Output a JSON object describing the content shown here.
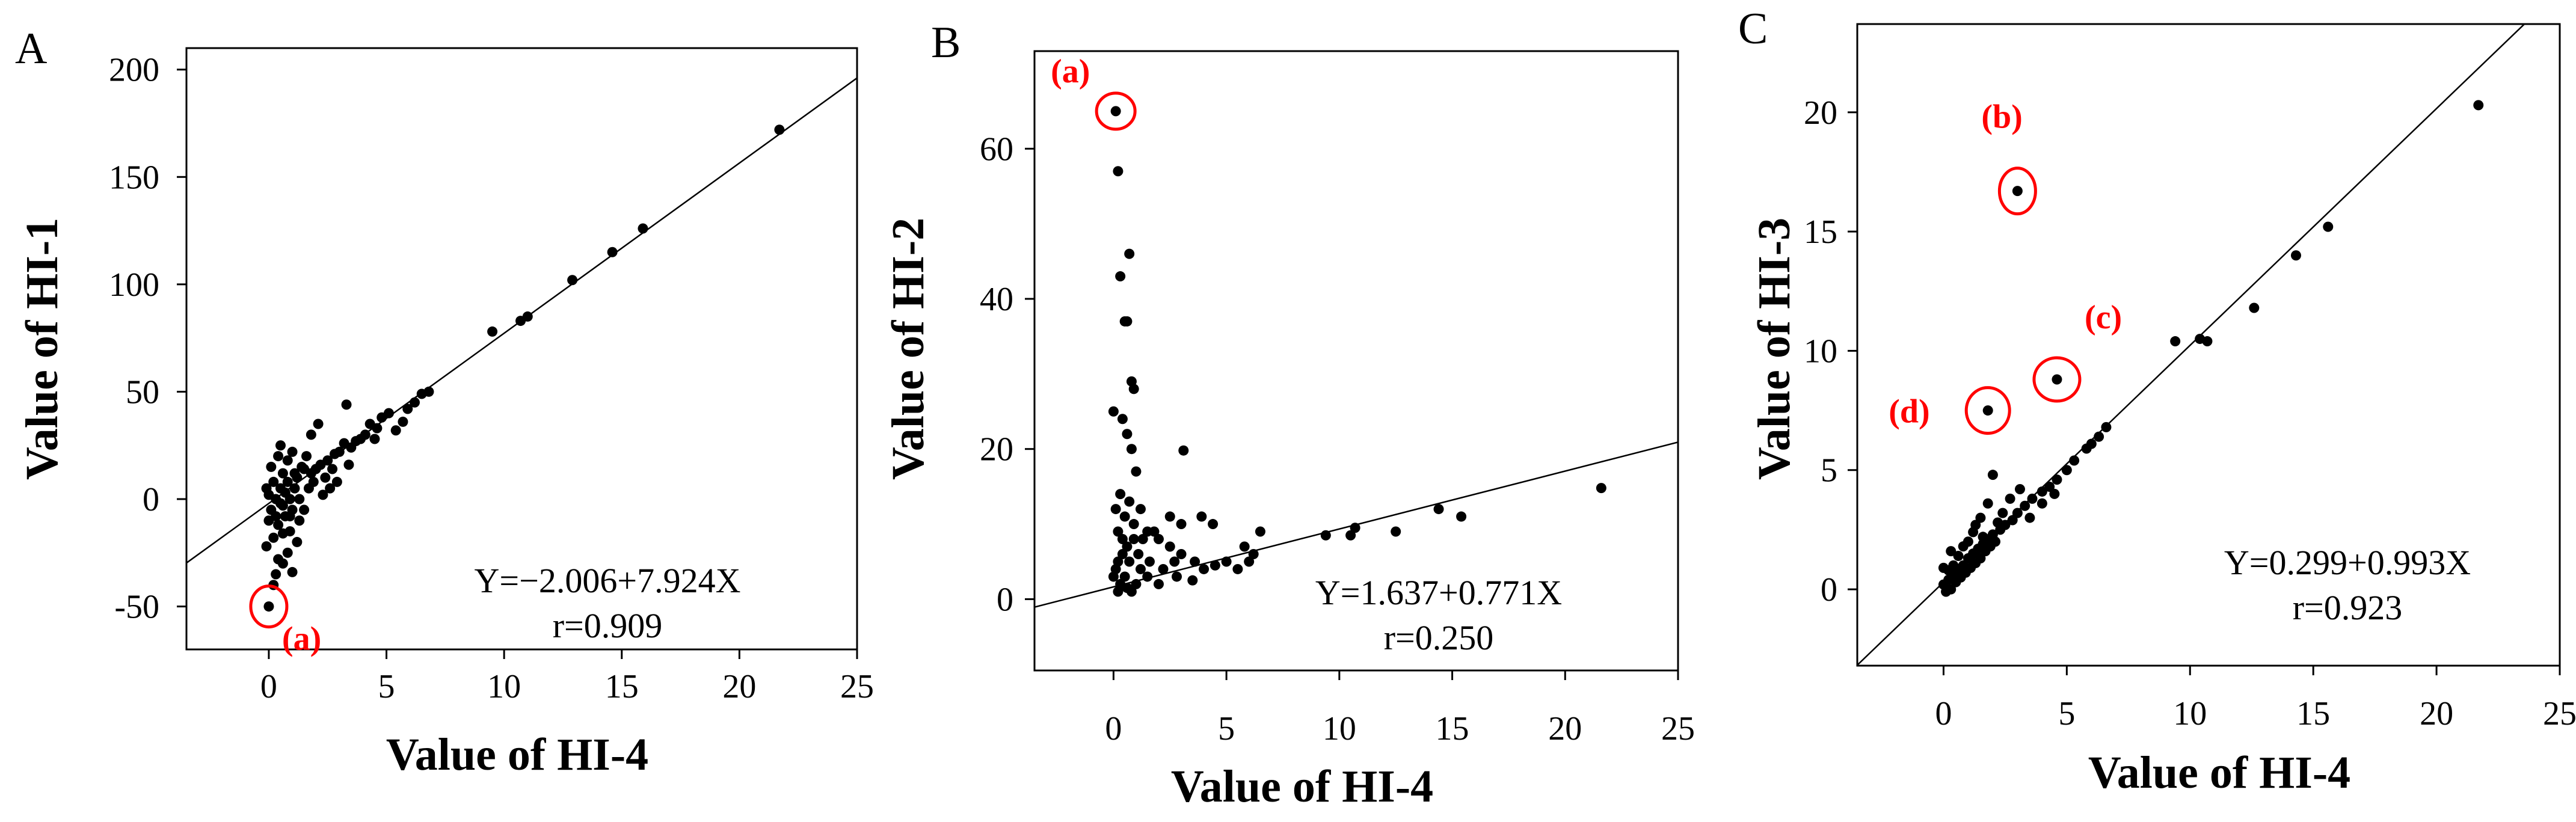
{
  "chart_data": [
    {
      "panel": "A",
      "type": "scatter",
      "xlabel": "Value of HI-4",
      "ylabel": "Value of HI-1",
      "xticks": [
        0,
        5,
        10,
        15,
        20,
        25
      ],
      "yticks": [
        -50,
        0,
        50,
        100,
        150,
        200
      ],
      "xlim": [
        -3.5,
        25
      ],
      "ylim": [
        -70,
        210
      ],
      "regression": {
        "intercept": -2.006,
        "slope": 7.924
      },
      "equation": "Y=−2.006+7.924X",
      "r_text": "r=0.909",
      "points": [
        [
          21.7,
          172
        ],
        [
          15.9,
          126
        ],
        [
          14.6,
          115
        ],
        [
          12.9,
          102
        ],
        [
          11.0,
          85
        ],
        [
          10.7,
          83
        ],
        [
          9.5,
          78
        ],
        [
          6.8,
          50
        ],
        [
          6.5,
          49
        ],
        [
          6.2,
          45
        ],
        [
          5.9,
          42
        ],
        [
          5.7,
          36
        ],
        [
          5.4,
          32
        ],
        [
          5.1,
          40
        ],
        [
          4.8,
          38
        ],
        [
          4.6,
          33
        ],
        [
          4.3,
          35
        ],
        [
          4.1,
          30
        ],
        [
          3.9,
          28
        ],
        [
          3.7,
          27
        ],
        [
          3.5,
          24
        ],
        [
          3.3,
          44
        ],
        [
          3.2,
          26
        ],
        [
          3.0,
          22
        ],
        [
          2.9,
          8
        ],
        [
          2.8,
          21
        ],
        [
          2.6,
          5
        ],
        [
          2.5,
          18
        ],
        [
          2.4,
          10
        ],
        [
          2.2,
          16
        ],
        [
          2.1,
          35
        ],
        [
          2.0,
          14
        ],
        [
          1.9,
          8
        ],
        [
          1.8,
          30
        ],
        [
          1.7,
          5
        ],
        [
          1.6,
          20
        ],
        [
          1.5,
          -5
        ],
        [
          1.4,
          15
        ],
        [
          1.3,
          -10
        ],
        [
          1.2,
          10
        ],
        [
          1.2,
          -20
        ],
        [
          1.1,
          5
        ],
        [
          1.0,
          22
        ],
        [
          1.0,
          -5
        ],
        [
          0.9,
          0
        ],
        [
          0.9,
          -15
        ],
        [
          0.8,
          8
        ],
        [
          0.8,
          -25
        ],
        [
          0.7,
          3
        ],
        [
          0.7,
          -8
        ],
        [
          0.6,
          12
        ],
        [
          0.6,
          -30
        ],
        [
          0.5,
          -2
        ],
        [
          0.5,
          5
        ],
        [
          0.4,
          20
        ],
        [
          0.4,
          -12
        ],
        [
          0.3,
          0
        ],
        [
          0.3,
          -35
        ],
        [
          0.2,
          8
        ],
        [
          0.2,
          -18
        ],
        [
          0.1,
          -5
        ],
        [
          0.1,
          15
        ],
        [
          0.0,
          -10
        ],
        [
          0.0,
          2
        ],
        [
          -0.1,
          -22
        ],
        [
          -0.1,
          5
        ],
        [
          0.2,
          -40
        ],
        [
          0.4,
          -28
        ],
        [
          0.6,
          -16
        ],
        [
          1.0,
          -34
        ],
        [
          1.5,
          14
        ],
        [
          2.3,
          2
        ],
        [
          0.5,
          25
        ],
        [
          0.8,
          18
        ],
        [
          1.1,
          12
        ],
        [
          0.3,
          -8
        ],
        [
          0.6,
          -3
        ],
        [
          0.9,
          -8
        ],
        [
          1.3,
          0
        ],
        [
          1.8,
          12
        ],
        [
          2.7,
          14
        ],
        [
          3.4,
          16
        ],
        [
          4.5,
          28
        ],
        [
          0.0,
          -50
        ]
      ],
      "annotations": [
        {
          "label": "(a)",
          "x": 0.0,
          "y": -50
        }
      ]
    },
    {
      "panel": "B",
      "type": "scatter",
      "xlabel": "Value of HI-4",
      "ylabel": "Value of HI-2",
      "xticks": [
        0,
        5,
        10,
        15,
        20,
        25
      ],
      "yticks": [
        0,
        20,
        40,
        60
      ],
      "xlim": [
        -3.5,
        25
      ],
      "ylim": [
        -9.5,
        73
      ],
      "regression": {
        "intercept": 1.637,
        "slope": 0.771
      },
      "equation": "Y=1.637+0.771X",
      "r_text": "r=0.250",
      "points": [
        [
          0.1,
          65
        ],
        [
          0.2,
          57
        ],
        [
          0.7,
          46
        ],
        [
          0.3,
          43
        ],
        [
          0.5,
          37
        ],
        [
          0.6,
          37
        ],
        [
          0.8,
          29
        ],
        [
          0.9,
          28
        ],
        [
          0.0,
          25
        ],
        [
          0.4,
          24
        ],
        [
          0.6,
          22
        ],
        [
          0.8,
          20
        ],
        [
          3.1,
          19.8
        ],
        [
          1.0,
          17
        ],
        [
          0.3,
          14
        ],
        [
          0.7,
          13
        ],
        [
          1.2,
          12
        ],
        [
          0.5,
          11
        ],
        [
          0.9,
          10
        ],
        [
          1.5,
          9
        ],
        [
          2.0,
          8
        ],
        [
          2.5,
          7
        ],
        [
          3.0,
          6
        ],
        [
          3.6,
          5
        ],
        [
          4.0,
          4
        ],
        [
          4.5,
          4.5
        ],
        [
          5.0,
          5
        ],
        [
          5.5,
          4
        ],
        [
          6.0,
          5
        ],
        [
          6.5,
          9
        ],
        [
          6.2,
          6
        ],
        [
          5.8,
          7
        ],
        [
          3.9,
          11
        ],
        [
          4.4,
          10
        ],
        [
          3.0,
          10
        ],
        [
          2.5,
          11
        ],
        [
          1.8,
          9
        ],
        [
          1.3,
          8
        ],
        [
          0.9,
          8
        ],
        [
          0.6,
          7
        ],
        [
          0.4,
          6
        ],
        [
          0.2,
          5
        ],
        [
          0.1,
          4
        ],
        [
          0.0,
          3
        ],
        [
          0.3,
          2
        ],
        [
          0.6,
          1.5
        ],
        [
          1.0,
          2
        ],
        [
          1.5,
          3
        ],
        [
          2.0,
          2
        ],
        [
          2.8,
          3
        ],
        [
          3.5,
          2.5
        ],
        [
          0.2,
          1
        ],
        [
          0.8,
          1
        ],
        [
          1.2,
          4
        ],
        [
          0.5,
          3
        ],
        [
          0.7,
          5
        ],
        [
          1.1,
          6
        ],
        [
          1.6,
          5
        ],
        [
          2.2,
          4
        ],
        [
          2.7,
          5
        ],
        [
          0.4,
          8
        ],
        [
          0.2,
          9
        ],
        [
          0.1,
          12
        ],
        [
          9.4,
          8.5
        ],
        [
          10.5,
          8.5
        ],
        [
          10.7,
          9.5
        ],
        [
          12.5,
          9
        ],
        [
          14.4,
          12
        ],
        [
          15.4,
          11
        ],
        [
          21.6,
          14.8
        ]
      ],
      "annotations": [
        {
          "label": "(a)",
          "x": 0.1,
          "y": 65
        }
      ]
    },
    {
      "panel": "C",
      "type": "scatter",
      "xlabel": "Value of HI-4",
      "ylabel": "Value of HI-3",
      "xticks": [
        0,
        5,
        10,
        15,
        20,
        25
      ],
      "yticks": [
        0,
        5,
        10,
        15,
        20
      ],
      "xlim": [
        -3.5,
        25
      ],
      "ylim": [
        -3.2,
        23.7
      ],
      "regression": {
        "intercept": 0.299,
        "slope": 0.993
      },
      "equation": "Y=0.299+0.993X",
      "r_text": "r=0.923",
      "points": [
        [
          21.7,
          20.3
        ],
        [
          15.6,
          15.2
        ],
        [
          14.3,
          14.0
        ],
        [
          12.6,
          11.8
        ],
        [
          10.7,
          10.4
        ],
        [
          10.4,
          10.5
        ],
        [
          9.4,
          10.4
        ],
        [
          6.6,
          6.8
        ],
        [
          6.3,
          6.4
        ],
        [
          6.0,
          6.1
        ],
        [
          5.8,
          5.9
        ],
        [
          5.3,
          5.4
        ],
        [
          5.0,
          5.0
        ],
        [
          4.6,
          4.6
        ],
        [
          4.3,
          4.3
        ],
        [
          4.0,
          4.1
        ],
        [
          3.6,
          3.8
        ],
        [
          3.3,
          3.5
        ],
        [
          3.0,
          3.2
        ],
        [
          2.8,
          2.9
        ],
        [
          2.5,
          2.7
        ],
        [
          2.3,
          2.5
        ],
        [
          2.0,
          2.3
        ],
        [
          1.8,
          2.1
        ],
        [
          1.6,
          1.9
        ],
        [
          1.4,
          1.7
        ],
        [
          1.2,
          1.5
        ],
        [
          1.0,
          1.3
        ],
        [
          0.8,
          1.0
        ],
        [
          0.6,
          0.8
        ],
        [
          0.4,
          0.6
        ],
        [
          0.2,
          0.4
        ],
        [
          0.0,
          0.2
        ],
        [
          0.1,
          -0.1
        ],
        [
          0.3,
          0.0
        ],
        [
          0.5,
          0.3
        ],
        [
          0.7,
          0.5
        ],
        [
          0.9,
          0.7
        ],
        [
          1.1,
          0.9
        ],
        [
          1.3,
          1.1
        ],
        [
          1.5,
          1.3
        ],
        [
          1.7,
          1.6
        ],
        [
          1.9,
          1.8
        ],
        [
          2.1,
          2.0
        ],
        [
          0.4,
          1.0
        ],
        [
          0.8,
          1.8
        ],
        [
          1.2,
          2.4
        ],
        [
          1.5,
          3.0
        ],
        [
          1.8,
          3.6
        ],
        [
          2.0,
          4.8
        ],
        [
          2.4,
          3.2
        ],
        [
          2.7,
          3.8
        ],
        [
          3.1,
          4.2
        ],
        [
          3.5,
          3.0
        ],
        [
          4.0,
          3.6
        ],
        [
          4.5,
          4.0
        ],
        [
          0.2,
          0.8
        ],
        [
          0.6,
          1.4
        ],
        [
          1.0,
          2.0
        ],
        [
          1.3,
          2.7
        ],
        [
          1.6,
          2.2
        ],
        [
          2.2,
          2.8
        ],
        [
          0.0,
          0.9
        ],
        [
          0.3,
          1.6
        ],
        [
          4.6,
          8.8
        ],
        [
          1.8,
          7.5
        ],
        [
          3.0,
          16.7
        ]
      ],
      "annotations": [
        {
          "label": "(b)",
          "x": 3.0,
          "y": 16.7
        },
        {
          "label": "(c)",
          "x": 4.6,
          "y": 8.8
        },
        {
          "label": "(d)",
          "x": 1.8,
          "y": 7.5
        }
      ]
    }
  ],
  "colors": {
    "points": "#000000",
    "annotation": "#ff0000"
  }
}
